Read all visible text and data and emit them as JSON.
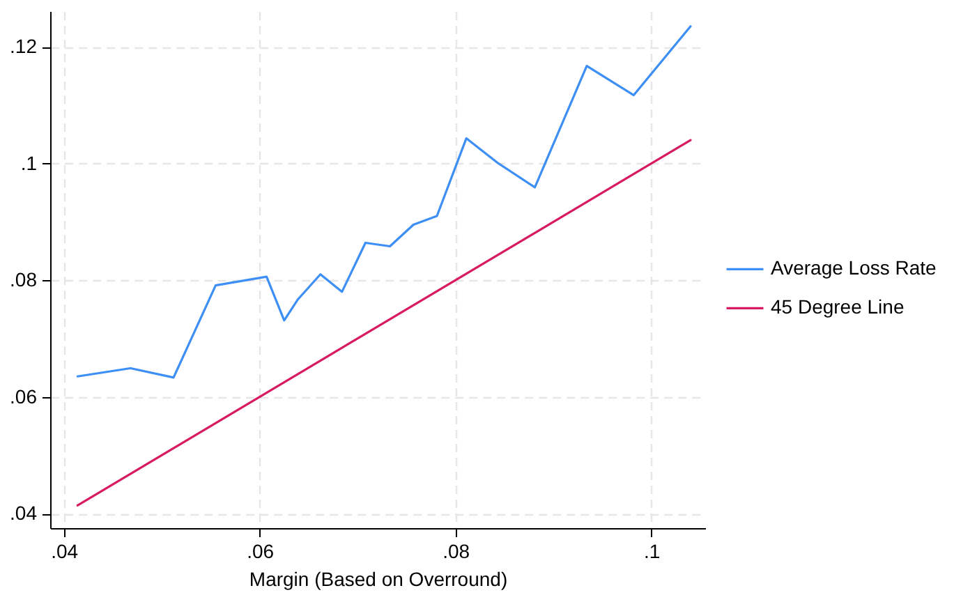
{
  "chart_data": {
    "type": "line",
    "xlabel": "Margin (Based on Overround)",
    "xlim": [
      0.0386,
      0.1055
    ],
    "ylim": [
      0.0375,
      0.1261
    ],
    "xticks": [
      {
        "value": 0.04,
        "label": ".04"
      },
      {
        "value": 0.06,
        "label": ".06"
      },
      {
        "value": 0.08,
        "label": ".08"
      },
      {
        "value": 0.1,
        "label": ".1"
      }
    ],
    "yticks": [
      {
        "value": 0.04,
        "label": ".04"
      },
      {
        "value": 0.06,
        "label": ".06"
      },
      {
        "value": 0.08,
        "label": ".08"
      },
      {
        "value": 0.1,
        "label": ".1"
      },
      {
        "value": 0.12,
        "label": ".12"
      }
    ],
    "grid": true,
    "legend": "right",
    "line_style": "solid",
    "marker": "none",
    "series": [
      {
        "name": "Average Loss Rate",
        "color": "#3d8ff5",
        "x": [
          0.0414,
          0.0468,
          0.0512,
          0.0555,
          0.0607,
          0.0625,
          0.0639,
          0.0662,
          0.0684,
          0.0708,
          0.0733,
          0.0757,
          0.0781,
          0.0811,
          0.0843,
          0.0881,
          0.0934,
          0.0982,
          0.104
        ],
        "values": [
          0.0635,
          0.0649,
          0.0633,
          0.0791,
          0.0806,
          0.0731,
          0.0767,
          0.081,
          0.078,
          0.0864,
          0.0858,
          0.0895,
          0.091,
          0.1043,
          0.1001,
          0.0959,
          0.1167,
          0.1117,
          0.1235
        ]
      },
      {
        "name": "45 Degree Line",
        "color": "#d81b60",
        "x": [
          0.0414,
          0.104
        ],
        "values": [
          0.0414,
          0.104
        ]
      }
    ]
  }
}
